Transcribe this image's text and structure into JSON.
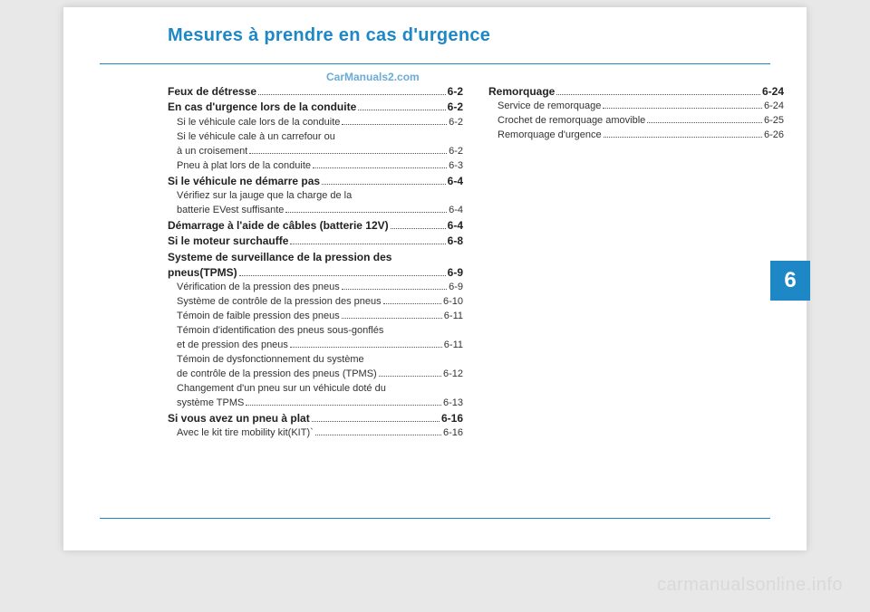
{
  "title": "Mesures à prendre en cas d'urgence",
  "watermarkTop": "CarManuals2.com",
  "watermarkBottom": "carmanualsonline.info",
  "chapter": "6",
  "colors": {
    "accent": "#1e88c7",
    "pageBg": "#ffffff",
    "bodyBg": "#e8e8e8",
    "wmTop": "#5ba3d0",
    "wmBottom": "#d9d9d9"
  },
  "leftCol": [
    {
      "level": 0,
      "label": "Feux de détresse",
      "page": "6-2"
    },
    {
      "level": 0,
      "label": "En cas d'urgence lors de la conduite",
      "page": "6-2"
    },
    {
      "level": 1,
      "label": "Si le véhicule cale lors de la conduite",
      "page": "6-2"
    },
    {
      "level": 1,
      "cont": "Si le véhicule cale à un carrefour ou"
    },
    {
      "level": 1,
      "label": "à un croisement",
      "page": "6-2"
    },
    {
      "level": 1,
      "label": "Pneu à plat lors de la conduite",
      "page": "6-3"
    },
    {
      "level": 0,
      "label": "Si le véhicule ne démarre pas",
      "page": "6-4"
    },
    {
      "level": 1,
      "cont": "Vérifiez sur la jauge que la charge de la"
    },
    {
      "level": 1,
      "label": "batterie EVest suffisante",
      "page": "6-4"
    },
    {
      "level": 0,
      "label": "Démarrage à l'aide de câbles (batterie 12V)",
      "page": "6-4"
    },
    {
      "level": 0,
      "label": "Si le moteur surchauffe",
      "page": "6-8"
    },
    {
      "level": 0,
      "cont": "Systeme de surveillance de la pression des"
    },
    {
      "level": 0,
      "label": "pneus(TPMS) ",
      "page": "6-9"
    },
    {
      "level": 1,
      "label": "Vérification de la pression des pneus",
      "page": "6-9"
    },
    {
      "level": 1,
      "label": "Système de contrôle de la pression des pneus",
      "page": "6-10"
    },
    {
      "level": 1,
      "label": "Témoin de faible pression des pneus",
      "page": "6-11"
    },
    {
      "level": 1,
      "cont": "Témoin d'identification des pneus sous-gonflés"
    },
    {
      "level": 1,
      "label": "et de pression des pneus",
      "page": "6-11"
    },
    {
      "level": 1,
      "cont": "Témoin de dysfonctionnement du système"
    },
    {
      "level": 1,
      "label": "de contrôle de la pression des pneus (TPMS)",
      "page": "6-12"
    },
    {
      "level": 1,
      "cont": "Changement d'un pneu sur un véhicule doté du"
    },
    {
      "level": 1,
      "label": "système TPMS",
      "page": "6-13"
    },
    {
      "level": 0,
      "label": "Si vous avez un pneu à plat ",
      "page": "6-16"
    },
    {
      "level": 1,
      "label": "Avec le kit tire mobility kit(KIT)`",
      "page": "6-16"
    }
  ],
  "rightCol": [
    {
      "level": 0,
      "label": "Remorquage",
      "page": "6-24"
    },
    {
      "level": 1,
      "label": "Service de remorquage",
      "page": "6-24"
    },
    {
      "level": 1,
      "label": "Crochet de remorquage amovible",
      "page": "6-25"
    },
    {
      "level": 1,
      "label": "Remorquage d'urgence",
      "page": "6-26"
    }
  ]
}
